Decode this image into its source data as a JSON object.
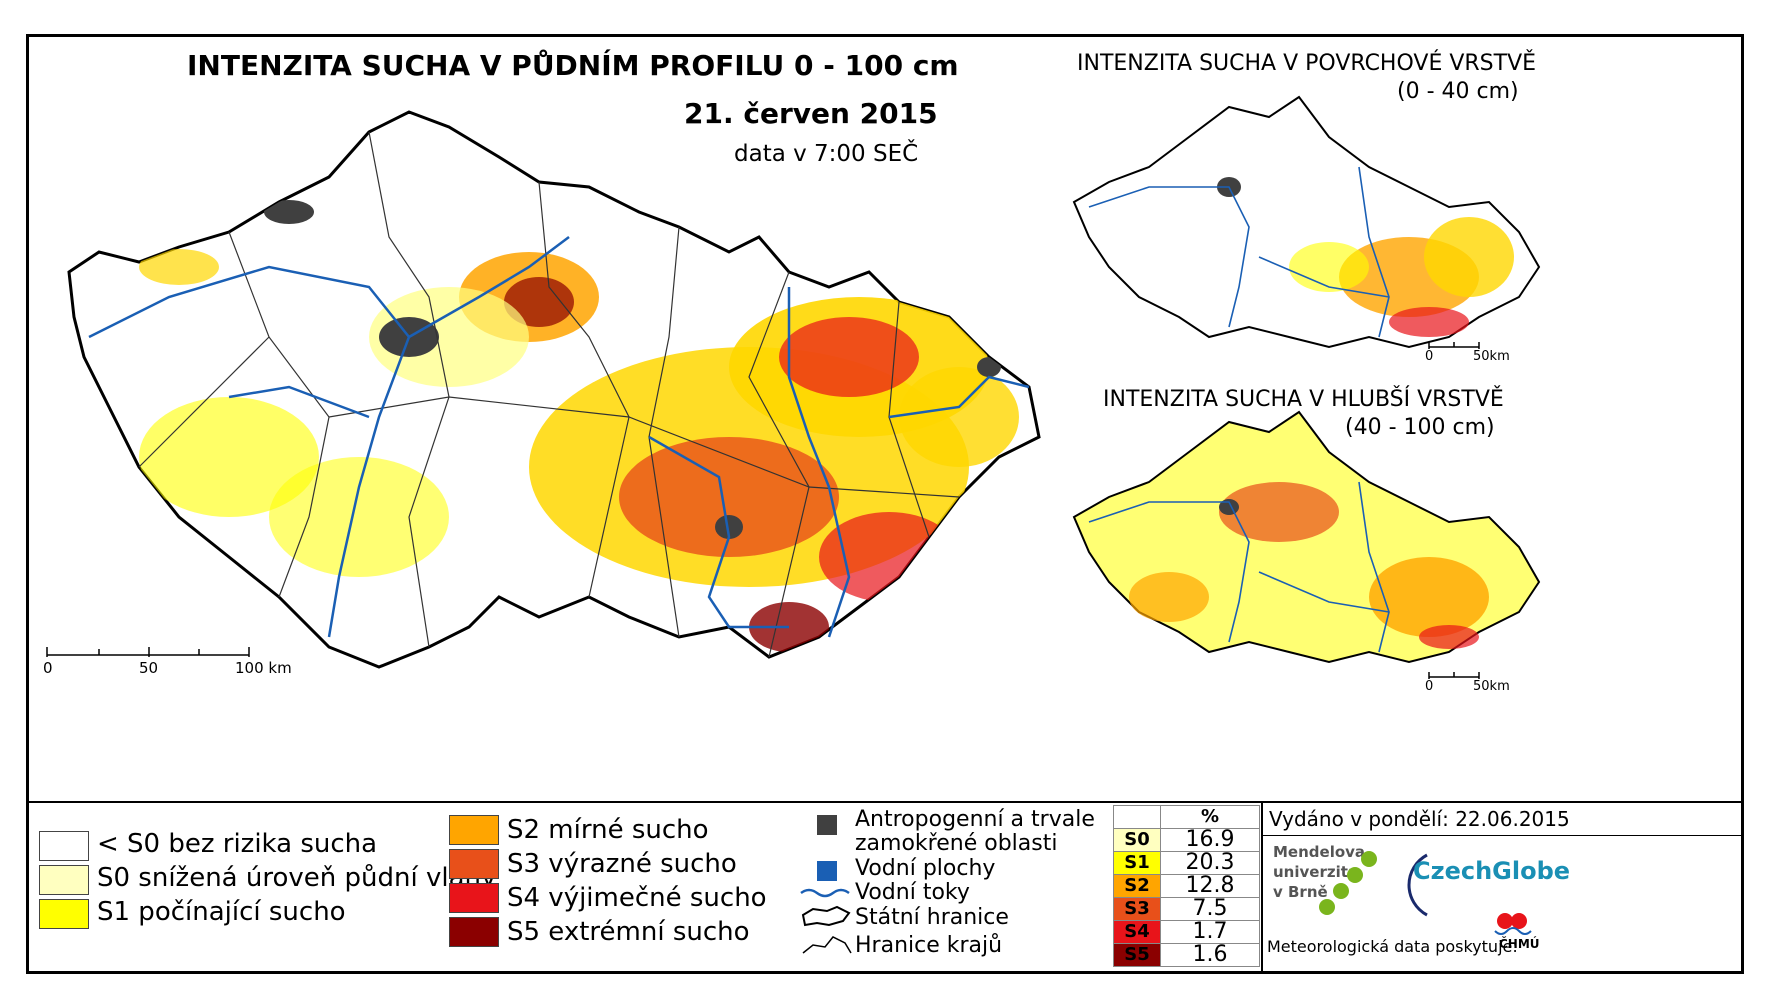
{
  "main_map": {
    "title": "INTENZITA SUCHA V PŮDNÍM PROFILU 0 - 100 cm",
    "date": "21. červen 2015",
    "time_note": "data v 7:00 SEČ",
    "scale": {
      "t0": "0",
      "t1": "50",
      "t2": "100 km"
    }
  },
  "inset_top": {
    "title": "INTENZITA SUCHA V POVRCHOVÉ VRSTVĚ",
    "subtitle": "(0 - 40 cm)",
    "scale": {
      "t0": "0",
      "t1": "50km"
    }
  },
  "inset_bottom": {
    "title": "INTENZITA SUCHA V HLUBŠÍ VRSTVĚ",
    "subtitle": "(40 - 100 cm)",
    "scale": {
      "t0": "0",
      "t1": "50km"
    }
  },
  "legend": {
    "classes_left": [
      {
        "label": "< S0 bez rizika sucha",
        "color": "#ffffff"
      },
      {
        "label": "S0 snížená úroveň půdní vláhy",
        "color": "#ffffc0"
      },
      {
        "label": "S1 počínající sucho",
        "color": "#ffff00"
      }
    ],
    "classes_mid": [
      {
        "label": "S2 mírné sucho",
        "color": "#ffa500"
      },
      {
        "label": "S3 výrazné sucho",
        "color": "#e8501a"
      },
      {
        "label": "S4 výjimečné sucho",
        "color": "#e8141a"
      },
      {
        "label": "S5 extrémní sucho",
        "color": "#8b0000"
      }
    ],
    "features": [
      {
        "label": "Antropogenní a trvale",
        "label2": "zamokřené oblasti",
        "color": "#404040"
      },
      {
        "label": "Vodní plochy",
        "color": "#1a5fb4"
      },
      {
        "label": "Vodní toky",
        "color": "#1a5fb4"
      },
      {
        "label": "Státní hranice",
        "color": "#000000"
      },
      {
        "label": "Hranice krajů",
        "color": "#000000"
      }
    ],
    "table": {
      "header": "%",
      "rows": [
        {
          "code": "S0",
          "value": "16.9",
          "color": "#ffffc0"
        },
        {
          "code": "S1",
          "value": "20.3",
          "color": "#ffff00"
        },
        {
          "code": "S2",
          "value": "12.8",
          "color": "#ffa500"
        },
        {
          "code": "S3",
          "value": "7.5",
          "color": "#e8501a"
        },
        {
          "code": "S4",
          "value": "1.7",
          "color": "#e8141a"
        },
        {
          "code": "S5",
          "value": "1.6",
          "color": "#8b0000"
        }
      ]
    },
    "issued": "Vydáno v pondělí: 22.06.2015",
    "logo_mendel": [
      "Mendelova",
      "univerzita",
      "v Brně"
    ],
    "logo_czechglobe": "CzechGlobe",
    "logo_chmu": "ČHMÚ",
    "data_provider": "Meteorologická data poskytuje:"
  }
}
